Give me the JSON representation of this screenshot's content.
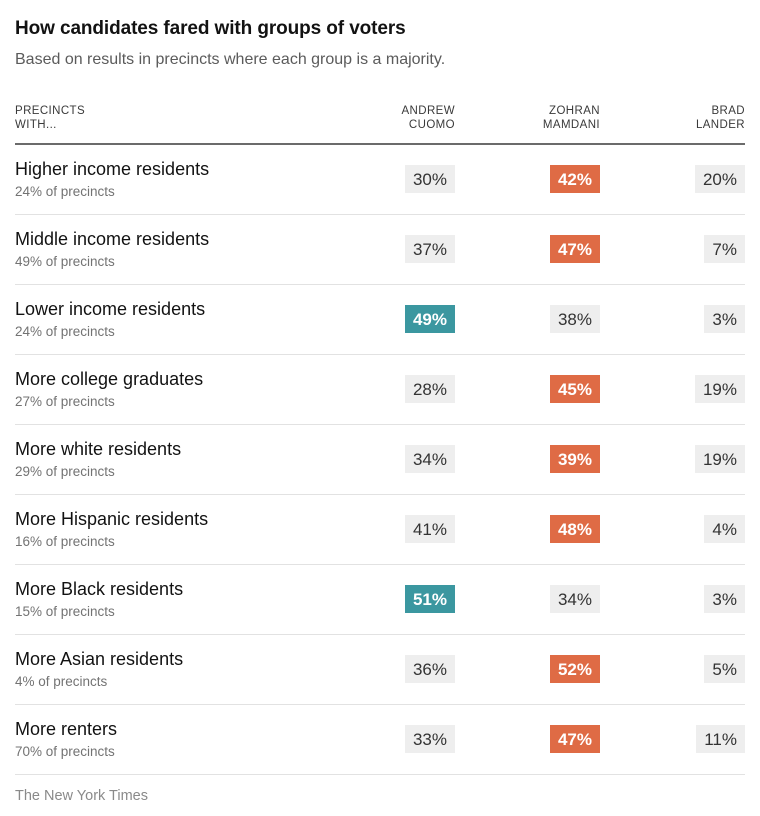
{
  "header": {
    "title": "How candidates fared with groups of voters",
    "subtitle": "Based on results in precincts where each group is a majority."
  },
  "colors": {
    "orange": "#df6b45",
    "teal": "#3b97a0",
    "badge_bg": "#eeeeee",
    "header_rule": "#6b6b6b",
    "row_rule": "#e2e2e2"
  },
  "table": {
    "row_header_lines": [
      "PRECINCTS",
      "WITH..."
    ],
    "columns": [
      {
        "line1": "ANDREW",
        "line2": "CUOMO"
      },
      {
        "line1": "ZOHRAN",
        "line2": "MAMDANI"
      },
      {
        "line1": "BRAD",
        "line2": "LANDER"
      }
    ],
    "rows": [
      {
        "label": "Higher income residents",
        "sublabel": "24% of precincts",
        "values": [
          {
            "text": "30%",
            "highlight": null
          },
          {
            "text": "42%",
            "highlight": "orange"
          },
          {
            "text": "20%",
            "highlight": null
          }
        ]
      },
      {
        "label": "Middle income residents",
        "sublabel": "49% of precincts",
        "values": [
          {
            "text": "37%",
            "highlight": null
          },
          {
            "text": "47%",
            "highlight": "orange"
          },
          {
            "text": "7%",
            "highlight": null
          }
        ]
      },
      {
        "label": "Lower income residents",
        "sublabel": "24% of precincts",
        "values": [
          {
            "text": "49%",
            "highlight": "teal"
          },
          {
            "text": "38%",
            "highlight": null
          },
          {
            "text": "3%",
            "highlight": null
          }
        ]
      },
      {
        "label": "More college graduates",
        "sublabel": "27% of precincts",
        "values": [
          {
            "text": "28%",
            "highlight": null
          },
          {
            "text": "45%",
            "highlight": "orange"
          },
          {
            "text": "19%",
            "highlight": null
          }
        ]
      },
      {
        "label": "More white residents",
        "sublabel": "29% of precincts",
        "values": [
          {
            "text": "34%",
            "highlight": null
          },
          {
            "text": "39%",
            "highlight": "orange"
          },
          {
            "text": "19%",
            "highlight": null
          }
        ]
      },
      {
        "label": "More Hispanic residents",
        "sublabel": "16% of precincts",
        "values": [
          {
            "text": "41%",
            "highlight": null
          },
          {
            "text": "48%",
            "highlight": "orange"
          },
          {
            "text": "4%",
            "highlight": null
          }
        ]
      },
      {
        "label": "More Black residents",
        "sublabel": "15% of precincts",
        "values": [
          {
            "text": "51%",
            "highlight": "teal"
          },
          {
            "text": "34%",
            "highlight": null
          },
          {
            "text": "3%",
            "highlight": null
          }
        ]
      },
      {
        "label": "More Asian residents",
        "sublabel": "4% of precincts",
        "values": [
          {
            "text": "36%",
            "highlight": null
          },
          {
            "text": "52%",
            "highlight": "orange"
          },
          {
            "text": "5%",
            "highlight": null
          }
        ]
      },
      {
        "label": "More renters",
        "sublabel": "70% of precincts",
        "values": [
          {
            "text": "33%",
            "highlight": null
          },
          {
            "text": "47%",
            "highlight": "orange"
          },
          {
            "text": "11%",
            "highlight": null
          }
        ]
      }
    ]
  },
  "footer": {
    "credit": "The New York Times"
  },
  "chart_data": {
    "type": "table",
    "title": "How candidates fared with groups of voters",
    "subtitle": "Based on results in precincts where each group is a majority.",
    "categories": [
      "Higher income residents",
      "Middle income residents",
      "Lower income residents",
      "More college graduates",
      "More white residents",
      "More Hispanic residents",
      "More Black residents",
      "More Asian residents",
      "More renters"
    ],
    "precinct_share_pct": [
      24,
      49,
      24,
      27,
      29,
      16,
      15,
      4,
      70
    ],
    "series": [
      {
        "name": "Andrew Cuomo",
        "values": [
          30,
          37,
          49,
          28,
          34,
          41,
          51,
          36,
          33
        ]
      },
      {
        "name": "Zohran Mamdani",
        "values": [
          42,
          47,
          38,
          45,
          39,
          48,
          34,
          52,
          47
        ]
      },
      {
        "name": "Brad Lander",
        "values": [
          20,
          7,
          3,
          19,
          19,
          4,
          3,
          5,
          11
        ]
      }
    ],
    "row_winner": [
      "Zohran Mamdani",
      "Zohran Mamdani",
      "Andrew Cuomo",
      "Zohran Mamdani",
      "Zohran Mamdani",
      "Zohran Mamdani",
      "Andrew Cuomo",
      "Zohran Mamdani",
      "Zohran Mamdani"
    ],
    "source": "The New York Times"
  }
}
